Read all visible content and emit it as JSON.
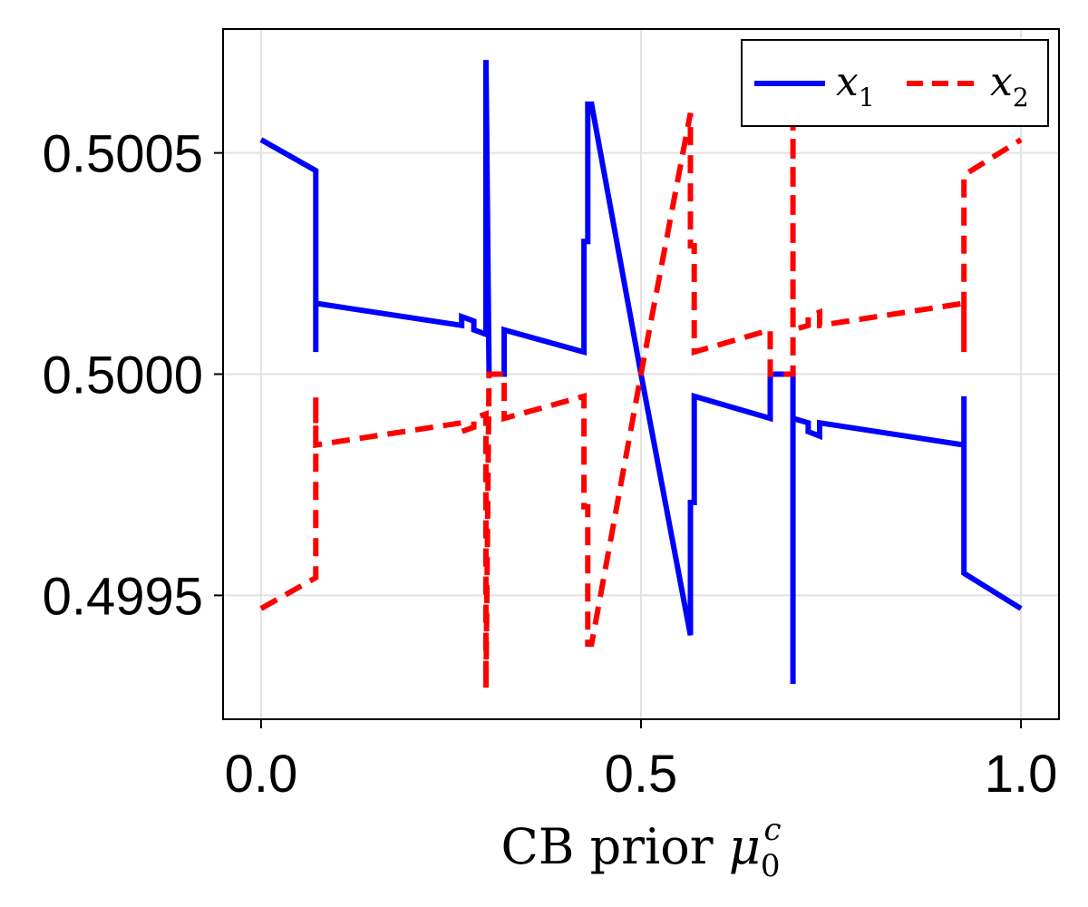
{
  "chart_data": {
    "type": "line",
    "title": "",
    "xlabel_main": "CB prior ",
    "xlabel_symbol": "μ",
    "xlabel_sub": "0",
    "xlabel_sup": "c",
    "ylabel": "",
    "xlim": [
      -0.05,
      1.05
    ],
    "ylim": [
      0.49922,
      0.50078
    ],
    "xticks": [
      0.0,
      0.5,
      1.0
    ],
    "xtick_labels": [
      "0.0",
      "0.5",
      "1.0"
    ],
    "yticks": [
      0.4995,
      0.5,
      0.5005
    ],
    "ytick_labels": [
      "0.4995",
      "0.5000",
      "0.5005"
    ],
    "grid": true,
    "legend_position": "top-right",
    "series": [
      {
        "name": "x",
        "subscript": "1",
        "color": "#0000ff",
        "dash": "solid",
        "x": [
          0.0,
          0.072,
          0.072,
          0.072,
          0.264,
          0.264,
          0.28,
          0.28,
          0.296,
          0.296,
          0.3,
          0.3,
          0.32,
          0.32,
          0.425,
          0.425,
          0.43,
          0.43,
          0.435,
          0.5,
          0.565,
          0.565,
          0.57,
          0.57,
          0.67,
          0.67,
          0.685,
          0.685,
          0.7,
          0.7,
          0.7,
          0.72,
          0.72,
          0.735,
          0.735,
          0.925,
          0.925,
          0.925,
          1.0
        ],
        "y": [
          0.50053,
          0.50046,
          0.50005,
          0.50016,
          0.50011,
          0.50013,
          0.50012,
          0.5001,
          0.50009,
          0.50071,
          0.5,
          0.5,
          0.5,
          0.5001,
          0.50005,
          0.5003,
          0.5003,
          0.50061,
          0.50061,
          0.5,
          0.49941,
          0.49971,
          0.49971,
          0.49995,
          0.4999,
          0.5,
          0.5,
          0.5,
          0.5,
          0.4993,
          0.4999,
          0.49989,
          0.49987,
          0.49986,
          0.49989,
          0.49984,
          0.49995,
          0.49955,
          0.49947
        ]
      },
      {
        "name": "x",
        "subscript": "2",
        "color": "#ff0000",
        "dash": "dashed",
        "x": [
          0.0,
          0.072,
          0.072,
          0.072,
          0.264,
          0.264,
          0.28,
          0.28,
          0.296,
          0.296,
          0.3,
          0.3,
          0.32,
          0.32,
          0.425,
          0.425,
          0.43,
          0.43,
          0.435,
          0.5,
          0.565,
          0.565,
          0.57,
          0.57,
          0.67,
          0.67,
          0.685,
          0.685,
          0.7,
          0.7,
          0.7,
          0.72,
          0.72,
          0.735,
          0.735,
          0.925,
          0.925,
          0.925,
          1.0
        ],
        "y": [
          0.49947,
          0.49954,
          0.49995,
          0.49984,
          0.49989,
          0.49987,
          0.49988,
          0.4999,
          0.49991,
          0.49929,
          0.5,
          0.5,
          0.5,
          0.4999,
          0.49995,
          0.4997,
          0.4997,
          0.49939,
          0.49939,
          0.5,
          0.50059,
          0.50029,
          0.50029,
          0.50005,
          0.5001,
          0.5,
          0.5,
          0.5,
          0.5,
          0.5007,
          0.5001,
          0.50011,
          0.50013,
          0.50014,
          0.50011,
          0.50016,
          0.50005,
          0.50045,
          0.50053
        ]
      }
    ]
  }
}
